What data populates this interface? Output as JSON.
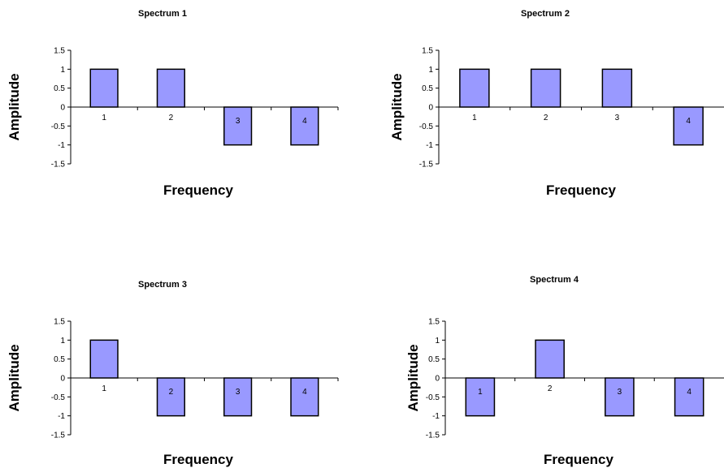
{
  "bar_fill": "#9999FF",
  "bar_stroke": "#000000",
  "chart_data": [
    {
      "type": "bar",
      "title": "Spectrum 1",
      "xlabel": "Frequency",
      "ylabel": "Amplitude",
      "categories": [
        "1",
        "2",
        "3",
        "4"
      ],
      "values": [
        1,
        1,
        -1,
        -1
      ],
      "ylim": [
        -1.5,
        1.5
      ],
      "yticks": [
        "1.5",
        "1",
        "0.5",
        "0",
        "-0.5",
        "-1",
        "-1.5"
      ],
      "ytick_values": [
        1.5,
        1,
        0.5,
        0,
        -0.5,
        -1,
        -1.5
      ],
      "grid": false,
      "legend": "none"
    },
    {
      "type": "bar",
      "title": "Spectrum 2",
      "xlabel": "Frequency",
      "ylabel": "Amplitude",
      "categories": [
        "1",
        "2",
        "3",
        "4"
      ],
      "values": [
        1,
        1,
        1,
        -1
      ],
      "ylim": [
        -1.5,
        1.5
      ],
      "yticks": [
        "1.5",
        "1",
        "0.5",
        "0",
        "-0.5",
        "-1",
        "-1.5"
      ],
      "ytick_values": [
        1.5,
        1,
        0.5,
        0,
        -0.5,
        -1,
        -1.5
      ],
      "grid": false,
      "legend": "none"
    },
    {
      "type": "bar",
      "title": "Spectrum 3",
      "xlabel": "Frequency",
      "ylabel": "Amplitude",
      "categories": [
        "1",
        "2",
        "3",
        "4"
      ],
      "values": [
        1,
        -1,
        -1,
        -1
      ],
      "ylim": [
        -1.5,
        1.5
      ],
      "yticks": [
        "1.5",
        "1",
        "0.5",
        "0",
        "-0.5",
        "-1",
        "-1.5"
      ],
      "ytick_values": [
        1.5,
        1,
        0.5,
        0,
        -0.5,
        -1,
        -1.5
      ],
      "grid": false,
      "legend": "none"
    },
    {
      "type": "bar",
      "title": "Spectrum 4",
      "xlabel": "Frequency",
      "ylabel": "Amplitude",
      "categories": [
        "1",
        "2",
        "3",
        "4"
      ],
      "values": [
        -1,
        1,
        -1,
        -1
      ],
      "ylim": [
        -1.5,
        1.5
      ],
      "yticks": [
        "1.5",
        "1",
        "0.5",
        "0",
        "-0.5",
        "-1",
        "-1.5"
      ],
      "ytick_values": [
        1.5,
        1,
        0.5,
        0,
        -0.5,
        -1,
        -1.5
      ],
      "grid": false,
      "legend": "none"
    }
  ]
}
